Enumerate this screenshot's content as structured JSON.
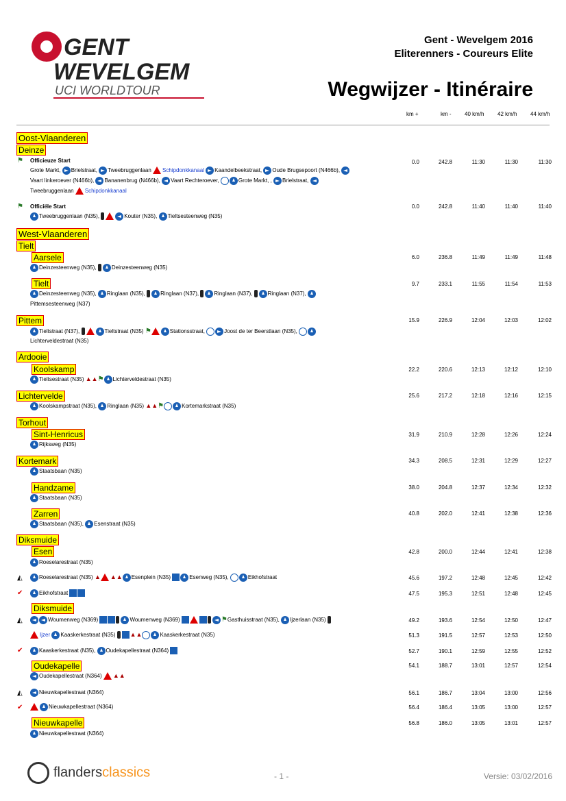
{
  "header": {
    "logo_line1": "GENT",
    "logo_line2": "WEVELGEM",
    "logo_line3": "UCI WORLDTOUR",
    "race": "Gent - Wevelgem 2016",
    "category": "Eliterenners - Coureurs Elite",
    "title": "Wegwijzer - Itinéraire"
  },
  "columns": [
    "km +",
    "km -",
    "40 km/h",
    "42 km/h",
    "44 km/h"
  ],
  "places": {
    "oost_vlaanderen": "Oost-Vlaanderen",
    "deinze": "Deinze",
    "west_vlaanderen": "West-Vlaanderen",
    "tielt": "Tielt",
    "aarsele": "Aarsele",
    "tielt2": "Tielt",
    "pittem": "Pittem",
    "ardooie": "Ardooie",
    "koolskamp": "Koolskamp",
    "lichtervelde": "Lichtervelde",
    "torhout": "Torhout",
    "sint_henricus": "Sint-Henricus",
    "kortemark": "Kortemark",
    "handzame": "Handzame",
    "zarren": "Zarren",
    "diksmuide": "Diksmuide",
    "esen": "Esen",
    "diksmuide2": "Diksmuide",
    "oudekapelle": "Oudekapelle",
    "nieuwkapelle": "Nieuwkapelle"
  },
  "rows": [
    {
      "km_plus": "0.0",
      "km_min": "242.8",
      "t40": "11:30",
      "t42": "11:30",
      "t44": "11:30"
    },
    {
      "km_plus": "0.0",
      "km_min": "242.8",
      "t40": "11:40",
      "t42": "11:40",
      "t44": "11:40"
    },
    {
      "km_plus": "6.0",
      "km_min": "236.8",
      "t40": "11:49",
      "t42": "11:49",
      "t44": "11:48"
    },
    {
      "km_plus": "9.7",
      "km_min": "233.1",
      "t40": "11:55",
      "t42": "11:54",
      "t44": "11:53"
    },
    {
      "km_plus": "15.9",
      "km_min": "226.9",
      "t40": "12:04",
      "t42": "12:03",
      "t44": "12:02"
    },
    {
      "km_plus": "22.2",
      "km_min": "220.6",
      "t40": "12:13",
      "t42": "12:12",
      "t44": "12:10"
    },
    {
      "km_plus": "25.6",
      "km_min": "217.2",
      "t40": "12:18",
      "t42": "12:16",
      "t44": "12:15"
    },
    {
      "km_plus": "31.9",
      "km_min": "210.9",
      "t40": "12:28",
      "t42": "12:26",
      "t44": "12:24"
    },
    {
      "km_plus": "34.3",
      "km_min": "208.5",
      "t40": "12:31",
      "t42": "12:29",
      "t44": "12:27"
    },
    {
      "km_plus": "38.0",
      "km_min": "204.8",
      "t40": "12:37",
      "t42": "12:34",
      "t44": "12:32"
    },
    {
      "km_plus": "40.8",
      "km_min": "202.0",
      "t40": "12:41",
      "t42": "12:38",
      "t44": "12:36"
    },
    {
      "km_plus": "42.8",
      "km_min": "200.0",
      "t40": "12:44",
      "t42": "12:41",
      "t44": "12:38"
    },
    {
      "km_plus": "45.6",
      "km_min": "197.2",
      "t40": "12:48",
      "t42": "12:45",
      "t44": "12:42"
    },
    {
      "km_plus": "47.5",
      "km_min": "195.3",
      "t40": "12:51",
      "t42": "12:48",
      "t44": "12:45"
    },
    {
      "km_plus": "49.2",
      "km_min": "193.6",
      "t40": "12:54",
      "t42": "12:50",
      "t44": "12:47"
    },
    {
      "km_plus": "51.3",
      "km_min": "191.5",
      "t40": "12:57",
      "t42": "12:53",
      "t44": "12:50"
    },
    {
      "km_plus": "52.7",
      "km_min": "190.1",
      "t40": "12:59",
      "t42": "12:55",
      "t44": "12:52"
    },
    {
      "km_plus": "54.1",
      "km_min": "188.7",
      "t40": "13:01",
      "t42": "12:57",
      "t44": "12:54"
    },
    {
      "km_plus": "56.1",
      "km_min": "186.7",
      "t40": "13:04",
      "t42": "13:00",
      "t44": "12:56"
    },
    {
      "km_plus": "56.4",
      "km_min": "186.4",
      "t40": "13:05",
      "t42": "13:00",
      "t44": "12:57"
    },
    {
      "km_plus": "56.8",
      "km_min": "186.0",
      "t40": "13:05",
      "t42": "13:01",
      "t44": "12:57"
    }
  ],
  "text": {
    "official_unofficial": "Officieuze Start",
    "s1": "Grote Markt,",
    "s2": "Brielstraat,",
    "s3": "Tweebruggenlaan",
    "s4": "Schipdonkkanaal",
    "s5": "Kaandelbeekstraat,",
    "s6": "Oude Brugsepoort (N466b),",
    "s7": "Vaart linkeroever (N466b),",
    "s8": "Bananenbrug (N466b),",
    "s9": "Vaart Rechteroever,",
    "s10": "Grote Markt, ,",
    "s11": "Brielstraat,",
    "s12": "Tweebruggenlaan",
    "s13": "Schipdonkkanaal",
    "official_start": "Officiële Start",
    "o1": "Tweebruggenlaan (N35),",
    "o2": "Kouter (N35),",
    "o3": "Tieltsesteenweg (N35)",
    "a1": "Deinzesteenweg (N35),",
    "a2": "Deinzesteenweg (N35)",
    "t1": "Deinzesteenweg (N35),",
    "t2": "Ringlaan (N35),",
    "t3": "Ringlaan (N37),",
    "t4": "Ringlaan (N37),",
    "t5": "Ringlaan (N37),",
    "t6": "Pittemsesteenweg (N37)",
    "p1": "Tieltstraat (N37),",
    "p2": "Tieltstraat (N35)",
    "p3": "Stationsstraat,",
    "p4": "Joost de ter Beerstlaan (N35),",
    "p5": "Lichterveldestraat (N35)",
    "k1": "Tieltsestraat (N35)",
    "k2": "Lichterveldestraat (N35)",
    "l1": "Koolskampstraat (N35),",
    "l2": "Ringlaan (N35)",
    "l3": "Kortemarkstraat (N35)",
    "sh1": "Rijksweg (N35)",
    "km1": "Staatsbaan (N35)",
    "h1": "Staatsbaan (N35)",
    "z1": "Staatsbaan (N35),",
    "z2": "Esenstraat (N35)",
    "e1": "Roeselarestraat (N35)",
    "e2": "Roeselarestraat (N35)",
    "e3": "Esenplein (N35)",
    "e4": "Esenweg (N35),",
    "e5": "Eikhofstraat",
    "e6": "Eikhofstraat",
    "d1": "Woumenweg (N369)",
    "d2": "Woumenweg (N369)",
    "d3": "Gasthuisstraat (N35),",
    "d4": "Ijzerlaan (N35)",
    "d5": "Ijzer",
    "d6": "Kaaskerkestraat (N35)",
    "d7": "Kaaskerkestraat (N35)",
    "d8": "Kaaskerkestraat (N35),",
    "d9": "Oudekapellestraat (N364)",
    "ok1": "Oudekapellestraat (N364)",
    "n1": "Nieuwkapellestraat (N364)",
    "n2": "Nieuwkapellestraat (N364)",
    "n3": "Nieuwkapellestraat (N364)"
  },
  "footer": {
    "brand_a": "flanders",
    "brand_b": "classics",
    "page": "- 1 -",
    "version": "Versie: 03/02/2016"
  },
  "colors": {
    "highlight": "#ffff00",
    "border": "#dd0000",
    "sign_blue": "#1a5fb4",
    "brand_orange": "#f7941d",
    "logo_red": "#c8102e"
  }
}
